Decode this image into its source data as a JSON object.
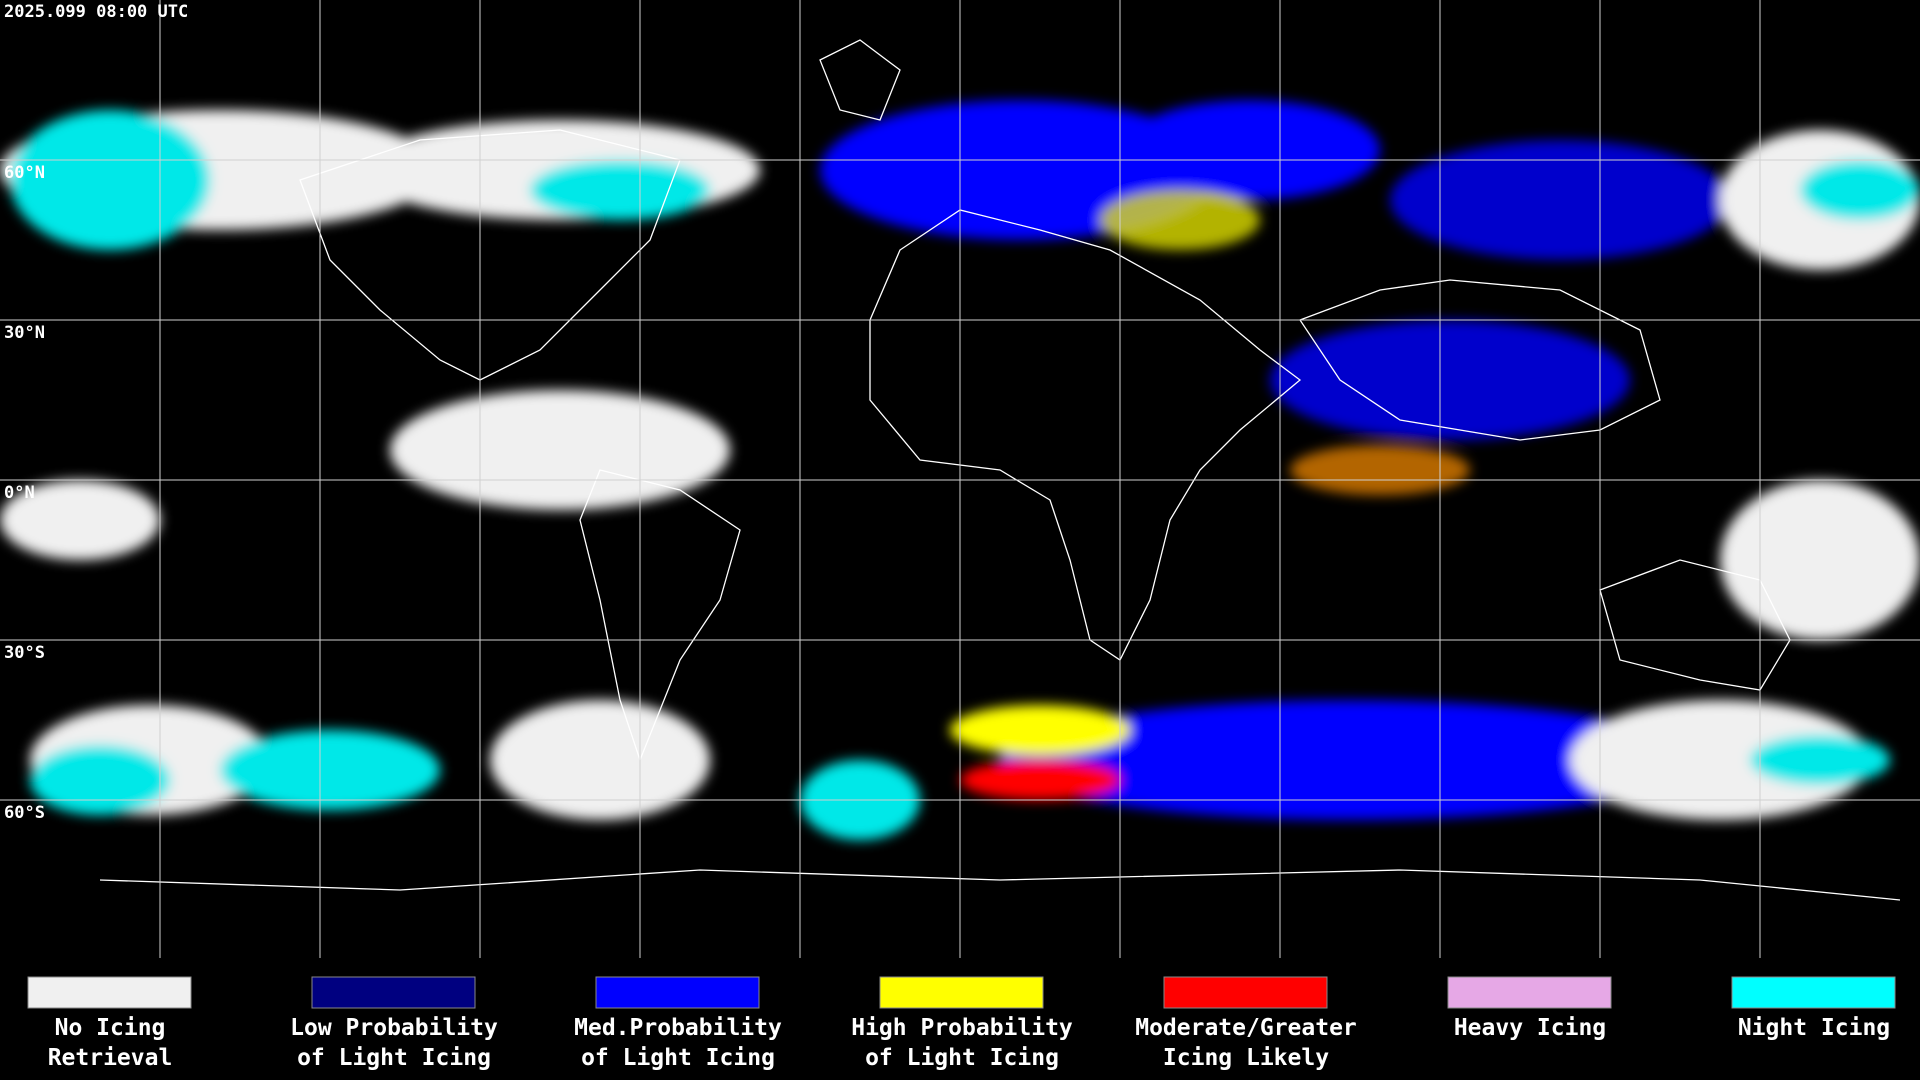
{
  "header": {
    "timestamp": "2025.099 08:00 UTC"
  },
  "map": {
    "latitude_labels": [
      "60°N",
      "30°N",
      "0°N",
      "30°S",
      "60°S"
    ]
  },
  "legend": [
    {
      "color": "#f0f0f0",
      "label": [
        "No Icing",
        "Retrieval"
      ]
    },
    {
      "color": "#000080",
      "label": [
        "Low Probability",
        "of Light Icing"
      ]
    },
    {
      "color": "#0000ff",
      "label": [
        "Med.Probability",
        "of Light Icing"
      ]
    },
    {
      "color": "#ffff00",
      "label": [
        "High Probability",
        "of Light Icing"
      ]
    },
    {
      "color": "#ff0000",
      "label": [
        "Moderate/Greater",
        "Icing Likely"
      ]
    },
    {
      "color": "#e6a8e6",
      "label": [
        "Heavy Icing"
      ]
    },
    {
      "color": "#00ffff",
      "label": [
        "Night Icing"
      ]
    }
  ]
}
